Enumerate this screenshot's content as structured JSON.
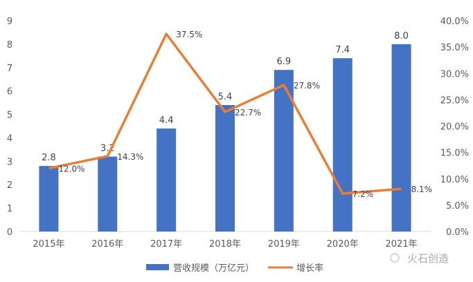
{
  "chart_data": {
    "type": "bar+line",
    "categories": [
      "2015年",
      "2016年",
      "2017年",
      "2018年",
      "2019年",
      "2020年",
      "2021年"
    ],
    "series": [
      {
        "name": "营收规模（万亿元）",
        "type": "bar",
        "axis": "left",
        "color": "#4472C4",
        "values": [
          2.8,
          3.2,
          4.4,
          5.4,
          6.9,
          7.4,
          8.0
        ],
        "labels": [
          "2.8",
          "3.2",
          "4.4",
          "5.4",
          "6.9",
          "7.4",
          "8.0"
        ]
      },
      {
        "name": "增长率",
        "type": "line",
        "axis": "right",
        "color": "#ED7D31",
        "values": [
          12.0,
          14.3,
          37.5,
          22.7,
          27.8,
          7.2,
          8.1
        ],
        "labels": [
          "12.0%",
          "14.3%",
          "37.5%",
          "22.7%",
          "27.8%",
          "7.2%",
          "8.1%"
        ]
      }
    ],
    "left_axis": {
      "ylim": [
        0,
        9
      ],
      "ticks": [
        "0",
        "1",
        "2",
        "3",
        "4",
        "5",
        "6",
        "7",
        "8",
        "9"
      ]
    },
    "right_axis": {
      "ylim": [
        0,
        40
      ],
      "ticks": [
        "0.0%",
        "5.0%",
        "10.0%",
        "15.0%",
        "20.0%",
        "25.0%",
        "30.0%",
        "35.0%",
        "40.0%"
      ]
    },
    "legend": "bottom",
    "grid": false
  },
  "watermark": "火石创造"
}
